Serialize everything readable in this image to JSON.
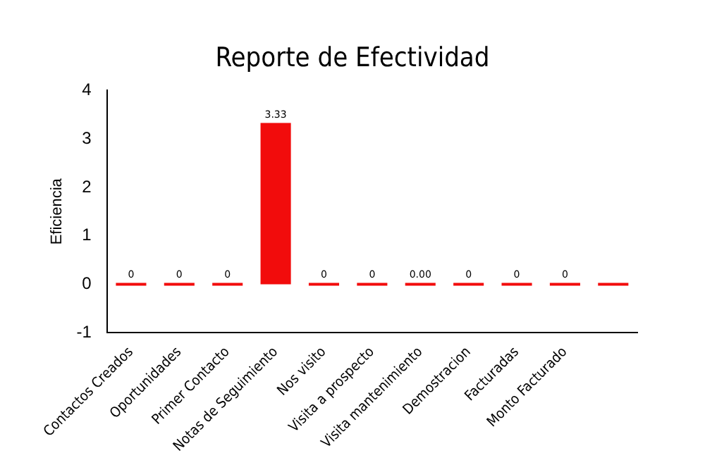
{
  "chart_data": {
    "type": "bar",
    "title": "Reporte de Efectividad",
    "ylabel": "Eficiencia",
    "categories": [
      "Contactos Creados",
      "Oportunidades",
      "Primer Contacto",
      "Notas de Seguimiento",
      "Nos visito",
      "Visita a prospecto",
      "Visita mantenimiento",
      "Demostracion",
      "Facturadas",
      "Monto Facturado",
      null
    ],
    "values": [
      0,
      0,
      0,
      3.33,
      0,
      0,
      0,
      0,
      0,
      0,
      0
    ],
    "value_labels": [
      "0",
      "0",
      "0",
      "3.33",
      "0",
      "0",
      "0.00",
      "0",
      "0",
      "0",
      null
    ],
    "color": "#f20c0c",
    "ylim": [
      -1,
      4
    ],
    "yticks": [
      -1,
      0,
      1,
      2,
      3,
      4
    ],
    "grid": false,
    "legend": false
  }
}
